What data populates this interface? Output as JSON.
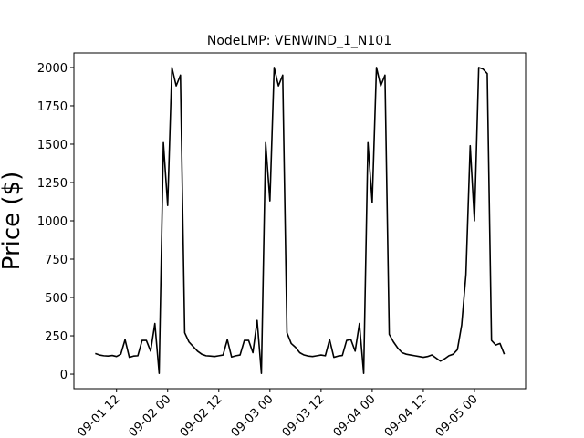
{
  "chart_data": {
    "type": "line",
    "title": "NodeLMP: VENWIND_1_N101",
    "y_label": "Price ($)",
    "color": "#000000",
    "x": [
      "09-01 07",
      "09-01 08",
      "09-01 09",
      "09-01 10",
      "09-01 11",
      "09-01 12",
      "09-01 13",
      "09-01 14",
      "09-01 15",
      "09-01 16",
      "09-01 17",
      "09-01 18",
      "09-01 19",
      "09-01 20",
      "09-01 21",
      "09-01 22",
      "09-01 23",
      "09-02 00",
      "09-02 01",
      "09-02 02",
      "09-02 03",
      "09-02 04",
      "09-02 05",
      "09-02 06",
      "09-02 07",
      "09-02 08",
      "09-02 09",
      "09-02 10",
      "09-02 11",
      "09-02 12",
      "09-02 13",
      "09-02 14",
      "09-02 15",
      "09-02 16",
      "09-02 17",
      "09-02 18",
      "09-02 19",
      "09-02 20",
      "09-02 21",
      "09-02 22",
      "09-02 23",
      "09-03 00",
      "09-03 01",
      "09-03 02",
      "09-03 03",
      "09-03 04",
      "09-03 05",
      "09-03 06",
      "09-03 07",
      "09-03 08",
      "09-03 09",
      "09-03 10",
      "09-03 11",
      "09-03 12",
      "09-03 13",
      "09-03 14",
      "09-03 15",
      "09-03 16",
      "09-03 17",
      "09-03 18",
      "09-03 19",
      "09-03 20",
      "09-03 21",
      "09-03 22",
      "09-03 23",
      "09-04 00",
      "09-04 01",
      "09-04 02",
      "09-04 03",
      "09-04 04",
      "09-04 05",
      "09-04 06",
      "09-04 07",
      "09-04 08",
      "09-04 09",
      "09-04 10",
      "09-04 11",
      "09-04 12",
      "09-04 13",
      "09-04 14",
      "09-04 15",
      "09-04 16",
      "09-04 17",
      "09-04 18",
      "09-04 19",
      "09-04 20",
      "09-04 21",
      "09-04 22",
      "09-04 23",
      "09-05 00",
      "09-05 01",
      "09-05 02",
      "09-05 03",
      "09-05 04",
      "09-05 05",
      "09-05 06",
      "09-05 07"
    ],
    "values": [
      135,
      125,
      120,
      118,
      122,
      115,
      130,
      225,
      110,
      118,
      120,
      220,
      220,
      150,
      330,
      5,
      1510,
      1100,
      2000,
      1880,
      1950,
      270,
      210,
      180,
      150,
      130,
      120,
      118,
      115,
      120,
      125,
      225,
      112,
      120,
      125,
      220,
      220,
      140,
      350,
      5,
      1510,
      1130,
      2000,
      1880,
      1950,
      270,
      200,
      175,
      140,
      125,
      118,
      115,
      120,
      125,
      120,
      225,
      110,
      118,
      122,
      220,
      225,
      150,
      330,
      5,
      1510,
      1120,
      2000,
      1880,
      1950,
      260,
      210,
      170,
      140,
      130,
      125,
      120,
      115,
      110,
      115,
      125,
      105,
      85,
      100,
      120,
      130,
      160,
      320,
      650,
      1490,
      1000,
      2000,
      1990,
      1960,
      220,
      190,
      200,
      130
    ],
    "xlim": [
      "09-01 02",
      "09-05 12"
    ],
    "xticks": [
      "09-01 12",
      "09-02 00",
      "09-02 12",
      "09-03 00",
      "09-03 12",
      "09-04 00",
      "09-04 12",
      "09-05 00"
    ],
    "ylim": [
      -95,
      2095
    ],
    "yticks": [
      0,
      250,
      500,
      750,
      1000,
      1250,
      1500,
      1750,
      2000
    ]
  }
}
